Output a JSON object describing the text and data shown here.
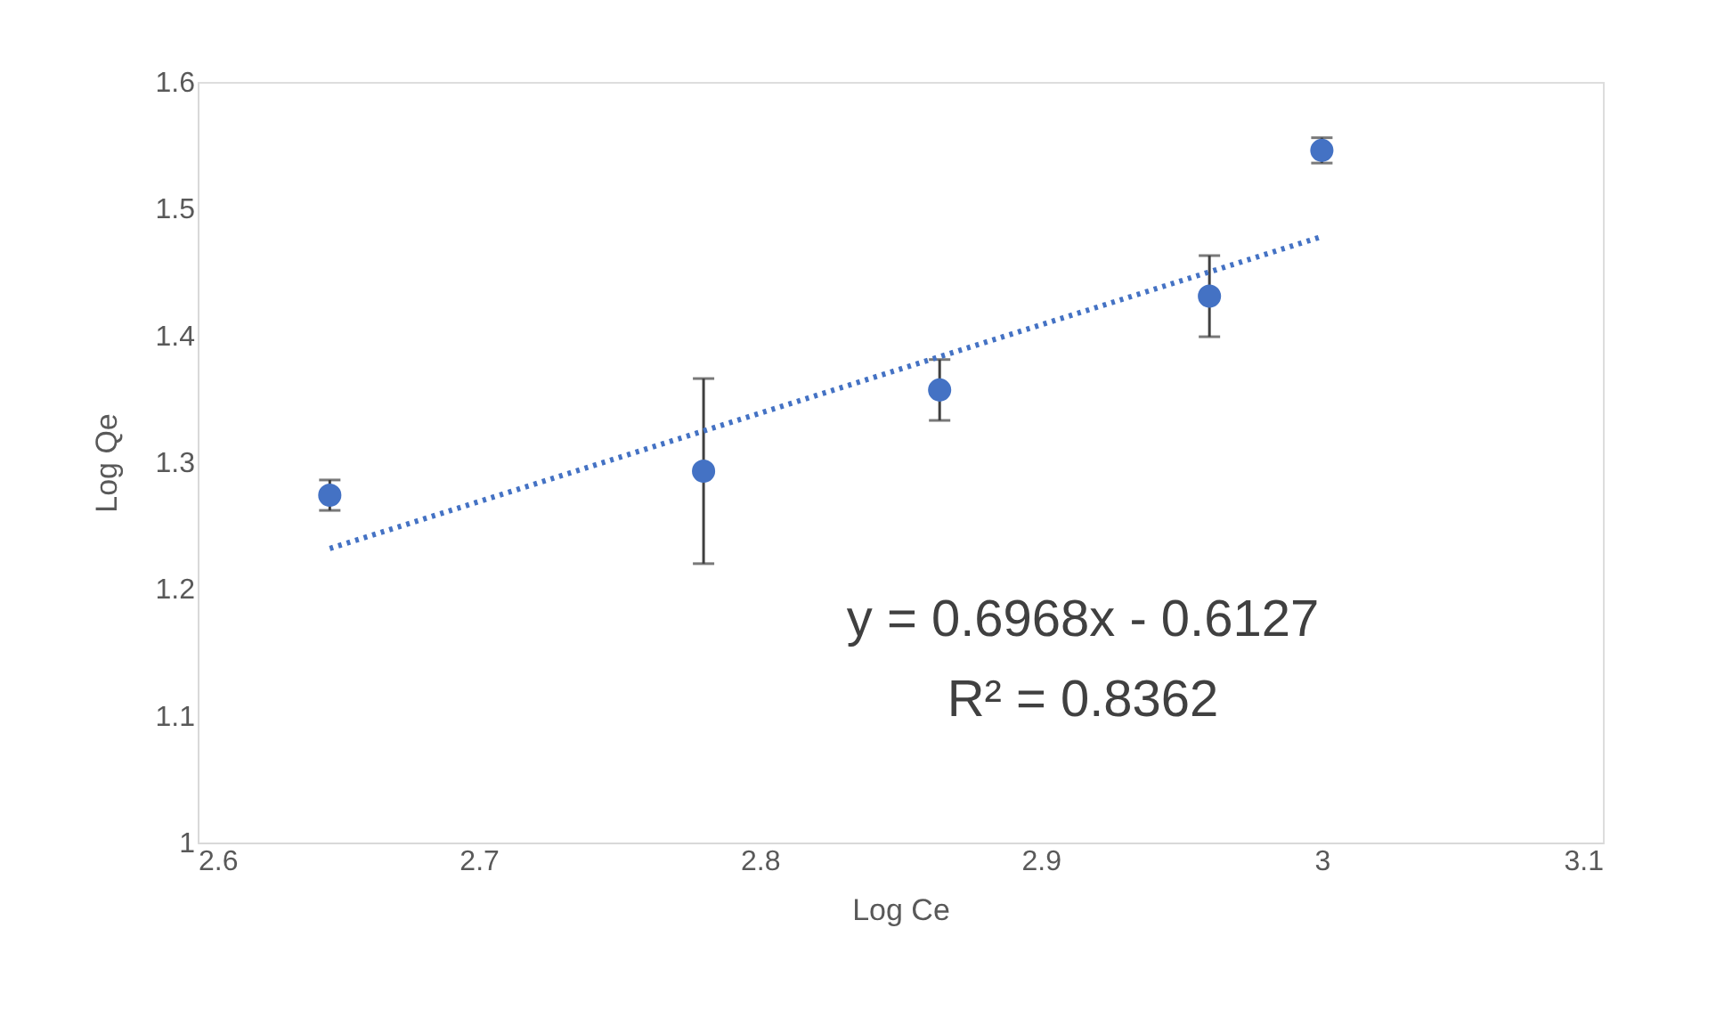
{
  "chart_data": {
    "type": "scatter",
    "xlabel": "Log Ce",
    "ylabel": "Log Qe",
    "series": [
      {
        "color": "#4472c4",
        "marker": "circle",
        "x": [
          2.647,
          2.78,
          2.864,
          2.96,
          3.0
        ],
        "values": [
          1.274,
          1.293,
          1.357,
          1.431,
          1.546
        ],
        "errors": [
          0.012,
          0.073,
          0.024,
          0.032,
          0.01
        ]
      },
      {
        "type": "line",
        "color": "#4472c4",
        "line_style": "dotted",
        "marker": "none",
        "x": [
          2.647,
          3.0
        ],
        "values": [
          1.232,
          1.478
        ]
      }
    ],
    "xlim": [
      2.6,
      3.1
    ],
    "xticks": [
      2.6,
      2.7,
      2.8,
      2.9,
      3,
      3.1
    ],
    "ylim": [
      1,
      1.6
    ],
    "yticks": [
      1,
      1.1,
      1.2,
      1.3,
      1.4,
      1.5,
      1.6
    ],
    "grid": false,
    "annotations": [
      "y = 0.6968x - 0.6127",
      "R² = 0.8362"
    ]
  }
}
